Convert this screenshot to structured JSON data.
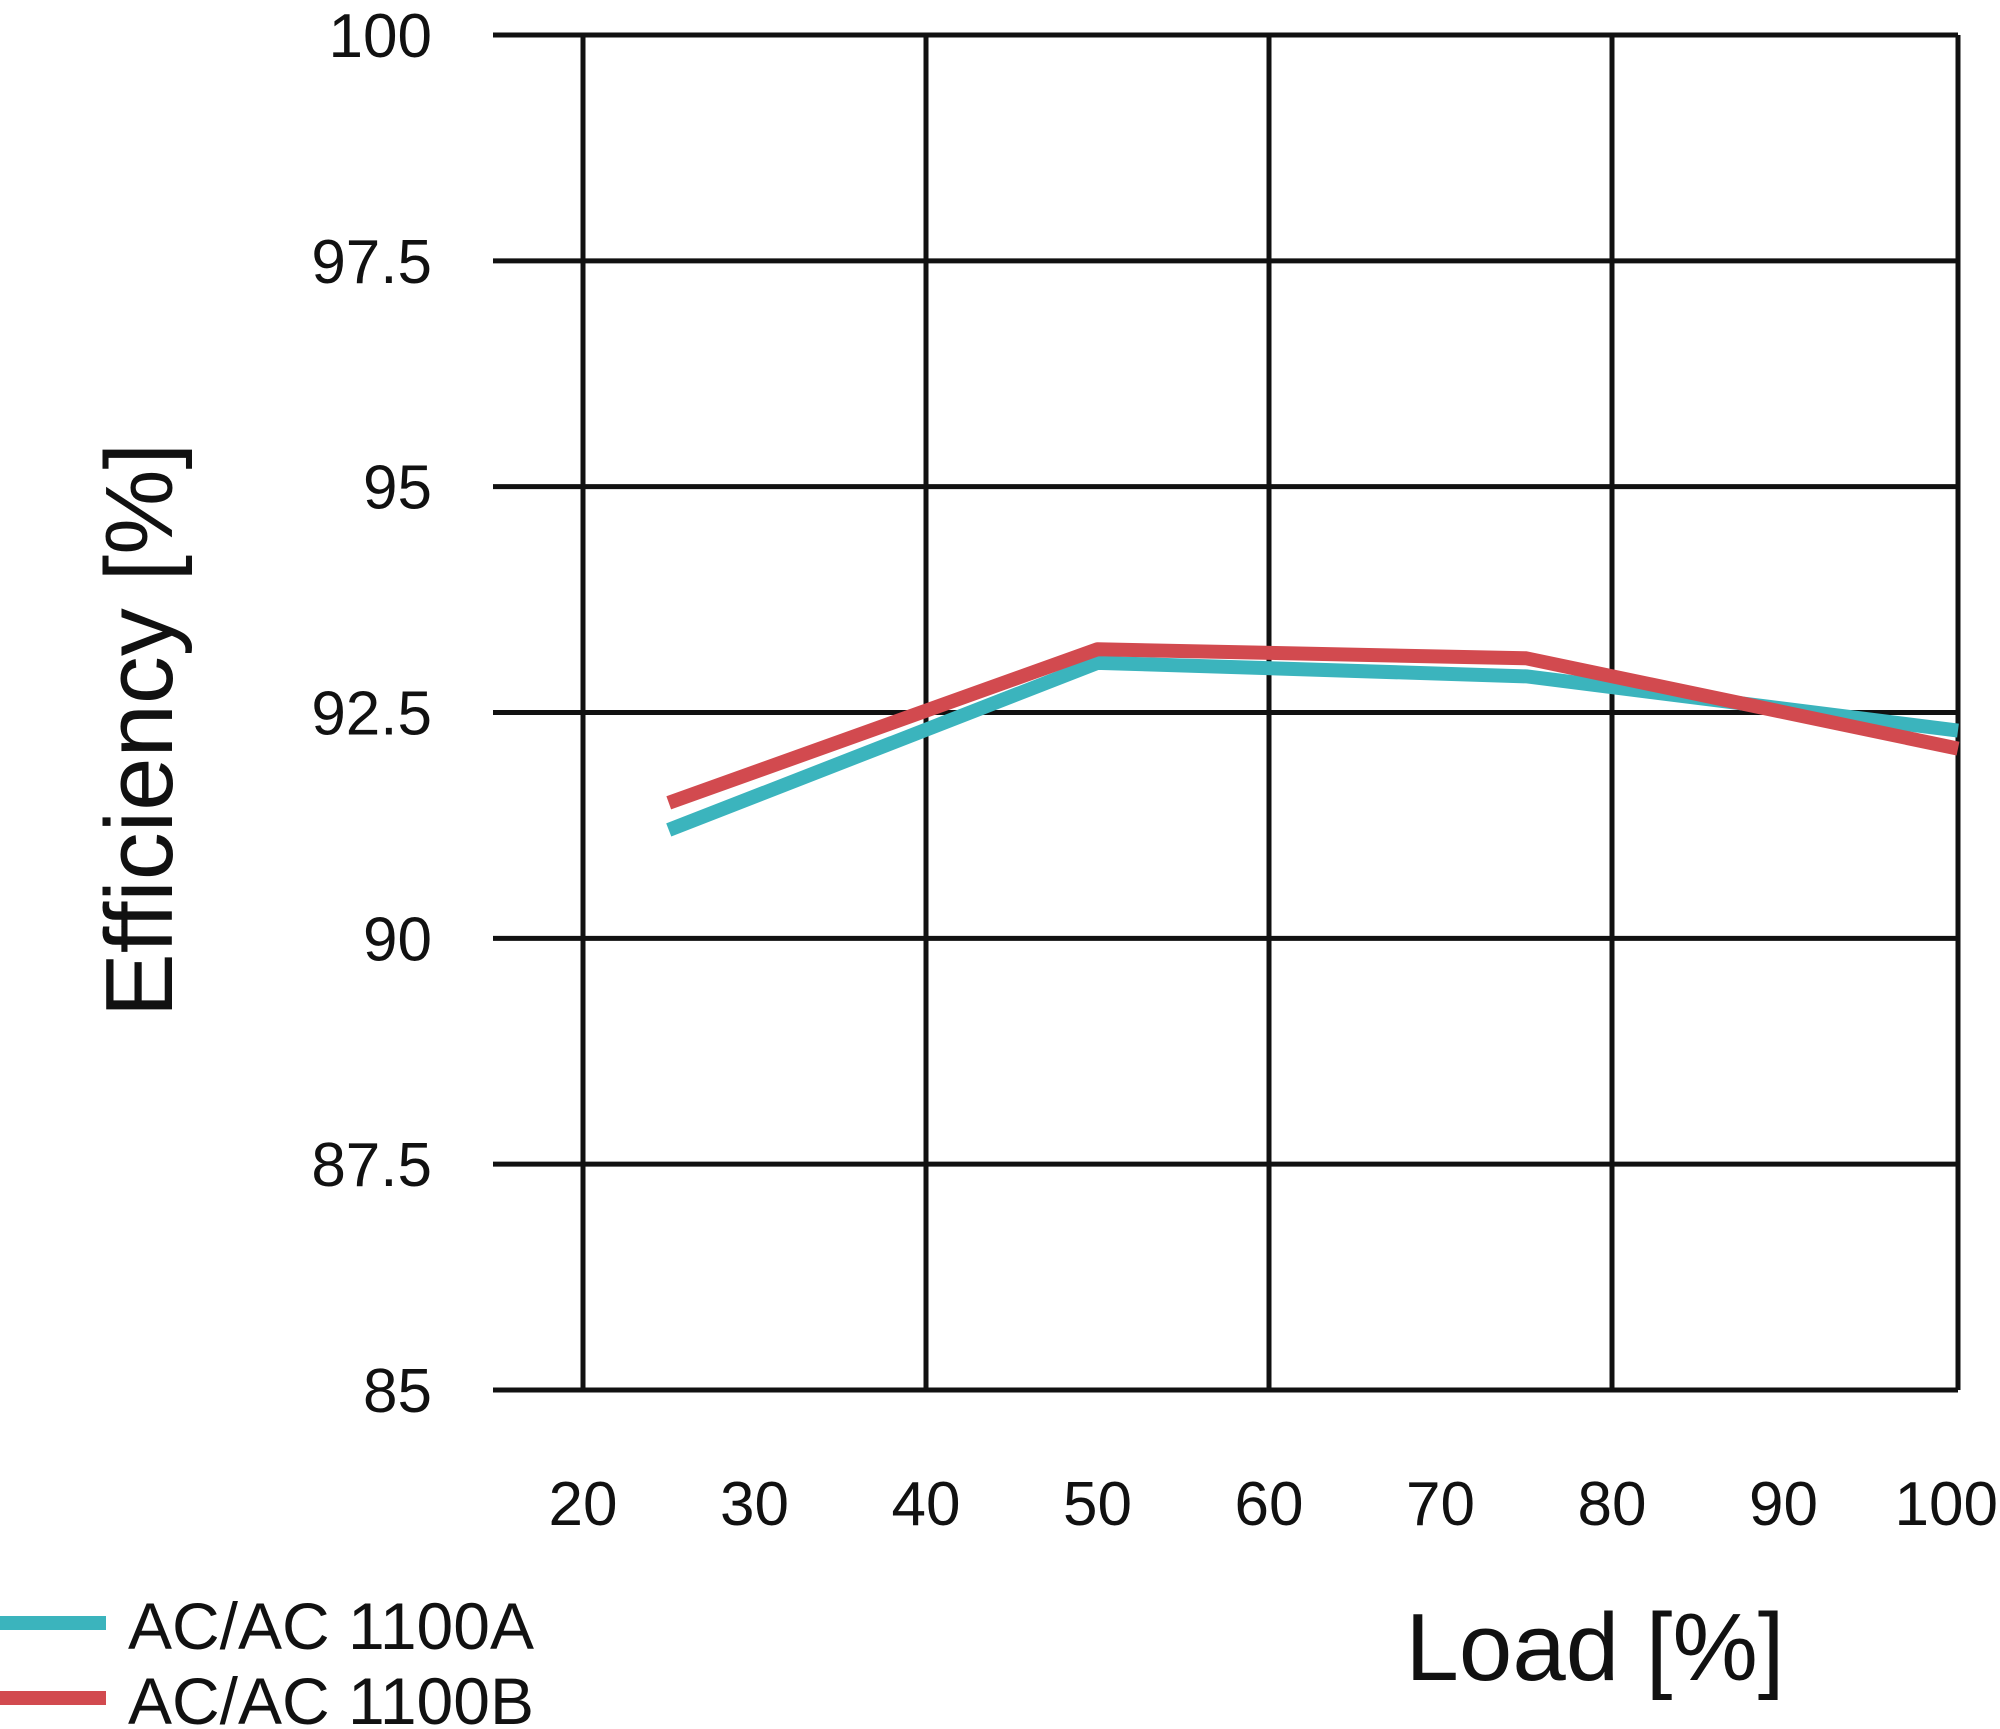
{
  "chart_data": {
    "type": "line",
    "title": "",
    "xlabel": "Load [%]",
    "ylabel": "Efficiency [%]",
    "xlim": [
      20,
      100
    ],
    "ylim": [
      85,
      100
    ],
    "x_ticks": [
      "20",
      "30",
      "40",
      "50",
      "60",
      "70",
      "80",
      "90",
      "100"
    ],
    "y_ticks": [
      "100",
      "97.5",
      "95",
      "92.5",
      "90",
      "87.5",
      "85"
    ],
    "grid": true,
    "legend_position": "bottom-left",
    "series": [
      {
        "name": "AC/AC 1100A",
        "color": "#3bb4bd",
        "points": [
          [
            25,
            91.2
          ],
          [
            50,
            93.05
          ],
          [
            75,
            92.9
          ],
          [
            100,
            92.3
          ]
        ]
      },
      {
        "name": "AC/AC 1100B",
        "color": "#d24a4f",
        "points": [
          [
            25,
            91.5
          ],
          [
            50,
            93.2
          ],
          [
            75,
            93.1
          ],
          [
            100,
            92.1
          ]
        ]
      }
    ]
  }
}
